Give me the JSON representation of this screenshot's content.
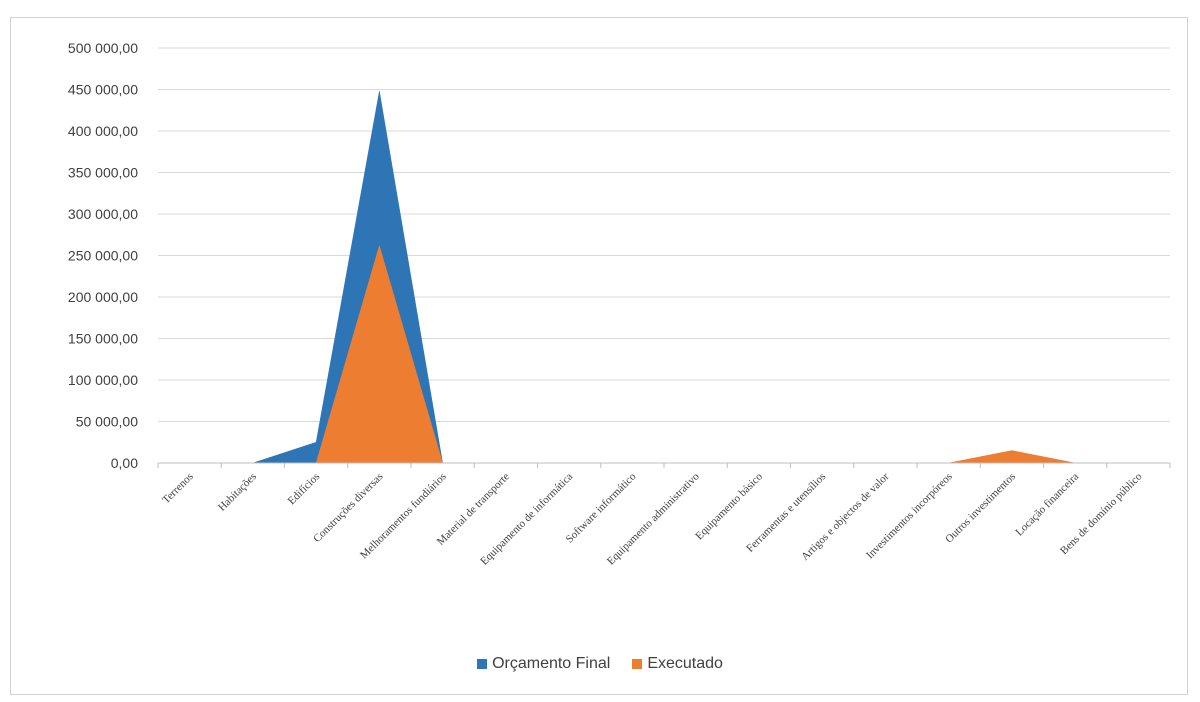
{
  "chart_data": {
    "type": "area",
    "categories": [
      "Terrenos",
      "Habitações",
      "Edifícios",
      "Construções diversas",
      "Melhoramentos fundiários",
      "Material de transporte",
      "Equipamento de informática",
      "Software informático",
      "Equipamento administrativo",
      "Equipamento básico",
      "Ferramentas e utensílios",
      "Artigos e objectos de valor",
      "Investimentos incorpóreos",
      "Outros investimentos",
      "Locação financeira",
      "Bens de domínio público"
    ],
    "series": [
      {
        "name": "Orçamento Final",
        "color": "#2e75b6",
        "values": [
          0,
          0,
          25000,
          448000,
          0,
          0,
          0,
          0,
          0,
          0,
          0,
          0,
          0,
          0,
          0,
          0
        ]
      },
      {
        "name": "Executado",
        "color": "#ed7d31",
        "values": [
          0,
          0,
          0,
          262000,
          0,
          0,
          0,
          0,
          0,
          0,
          0,
          0,
          0,
          15000,
          0,
          0
        ]
      }
    ],
    "yticks": [
      "0,00",
      "50 000,00",
      "100 000,00",
      "150 000,00",
      "200 000,00",
      "250 000,00",
      "300 000,00",
      "350 000,00",
      "400 000,00",
      "450 000,00",
      "500 000,00"
    ],
    "ylim": [
      0,
      500000
    ],
    "grid": true,
    "legend_position": "bottom"
  }
}
